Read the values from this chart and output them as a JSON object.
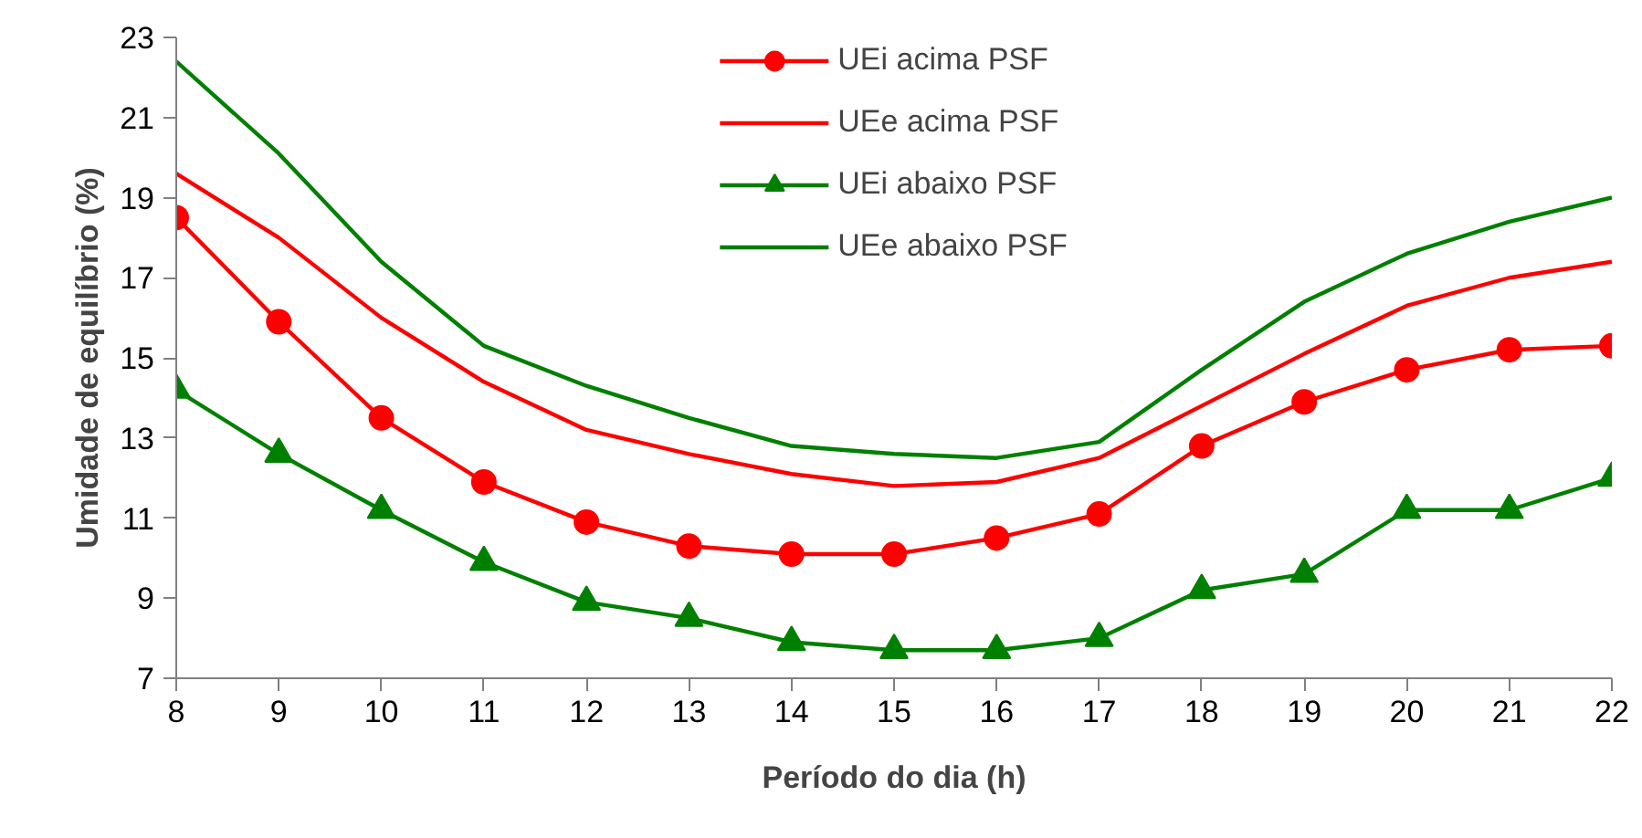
{
  "chart_data": {
    "type": "line",
    "xlabel": "Período do dia (h)",
    "ylabel": "Umidade de equilíbrio (%)",
    "x": [
      8,
      9,
      10,
      11,
      12,
      13,
      14,
      15,
      16,
      17,
      18,
      19,
      20,
      21,
      22
    ],
    "xlim": [
      8,
      22
    ],
    "xticks": [
      8,
      9,
      10,
      11,
      12,
      13,
      14,
      15,
      16,
      17,
      18,
      19,
      20,
      21,
      22
    ],
    "ylim": [
      7,
      23
    ],
    "yticks": [
      7,
      9,
      11,
      13,
      15,
      17,
      19,
      21,
      23
    ],
    "grid": false,
    "legend": "top",
    "series": [
      {
        "name": "UEi acima PSF",
        "color": "#ff0000",
        "marker": "circle",
        "values": [
          18.5,
          15.9,
          13.5,
          11.9,
          10.9,
          10.3,
          10.1,
          10.1,
          10.5,
          11.1,
          12.8,
          13.9,
          14.7,
          15.2,
          15.3
        ]
      },
      {
        "name": "UEe acima PSF",
        "color": "#ff0000",
        "marker": "none",
        "values": [
          19.6,
          18.0,
          16.0,
          14.4,
          13.2,
          12.6,
          12.1,
          11.8,
          11.9,
          12.5,
          13.8,
          15.1,
          16.3,
          17.0,
          17.4
        ]
      },
      {
        "name": "UEi abaixo PSF",
        "color": "#008000",
        "marker": "triangle",
        "values": [
          14.2,
          12.6,
          11.2,
          9.9,
          8.9,
          8.5,
          7.9,
          7.7,
          7.7,
          8.0,
          9.2,
          9.6,
          11.2,
          11.2,
          12.0
        ]
      },
      {
        "name": "UEe abaixo PSF",
        "color": "#008000",
        "marker": "none",
        "values": [
          22.4,
          20.1,
          17.4,
          15.3,
          14.3,
          13.5,
          12.8,
          12.6,
          12.5,
          12.9,
          14.7,
          16.4,
          17.6,
          18.4,
          19.0
        ]
      }
    ]
  }
}
